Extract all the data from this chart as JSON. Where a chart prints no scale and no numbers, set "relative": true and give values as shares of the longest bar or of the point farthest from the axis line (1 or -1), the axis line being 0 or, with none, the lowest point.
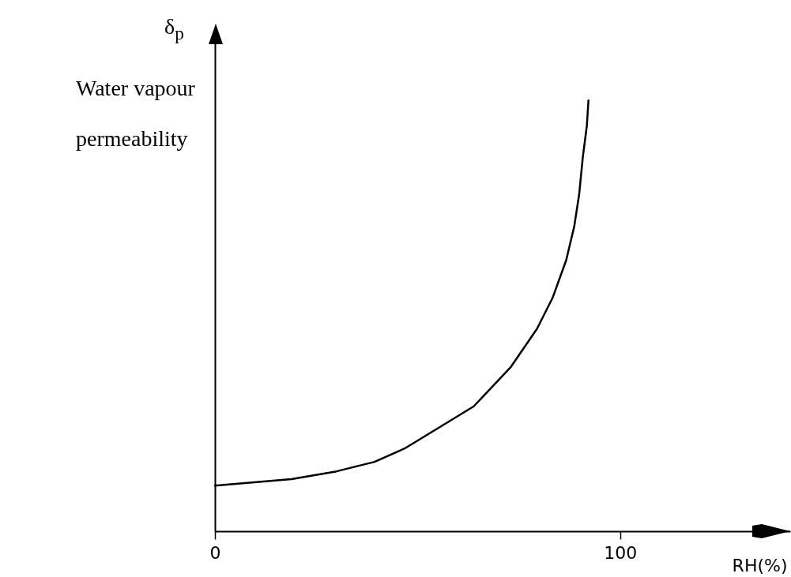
{
  "chart_data": {
    "type": "line",
    "relative": true,
    "xlabel": "RH(%)",
    "ylabel": "δ$_{p}$",
    "annotations": [
      "Water vapour permeability"
    ],
    "xlim": [
      0,
      142
    ],
    "xticks": [
      0,
      100
    ],
    "x": [
      0,
      18.9,
      30.0,
      39.4,
      46.8,
      50.5,
      63.9,
      73.1,
      79.5,
      83.4,
      86.7,
      88.7,
      89.9,
      90.8,
      91.8,
      92.2
    ],
    "series": [
      {
        "color": "#000000",
        "values": [
          0.106,
          0.121,
          0.139,
          0.161,
          0.192,
          0.213,
          0.29,
          0.382,
          0.47,
          0.543,
          0.629,
          0.708,
          0.782,
          0.868,
          0.941,
          1
        ]
      }
    ]
  }
}
